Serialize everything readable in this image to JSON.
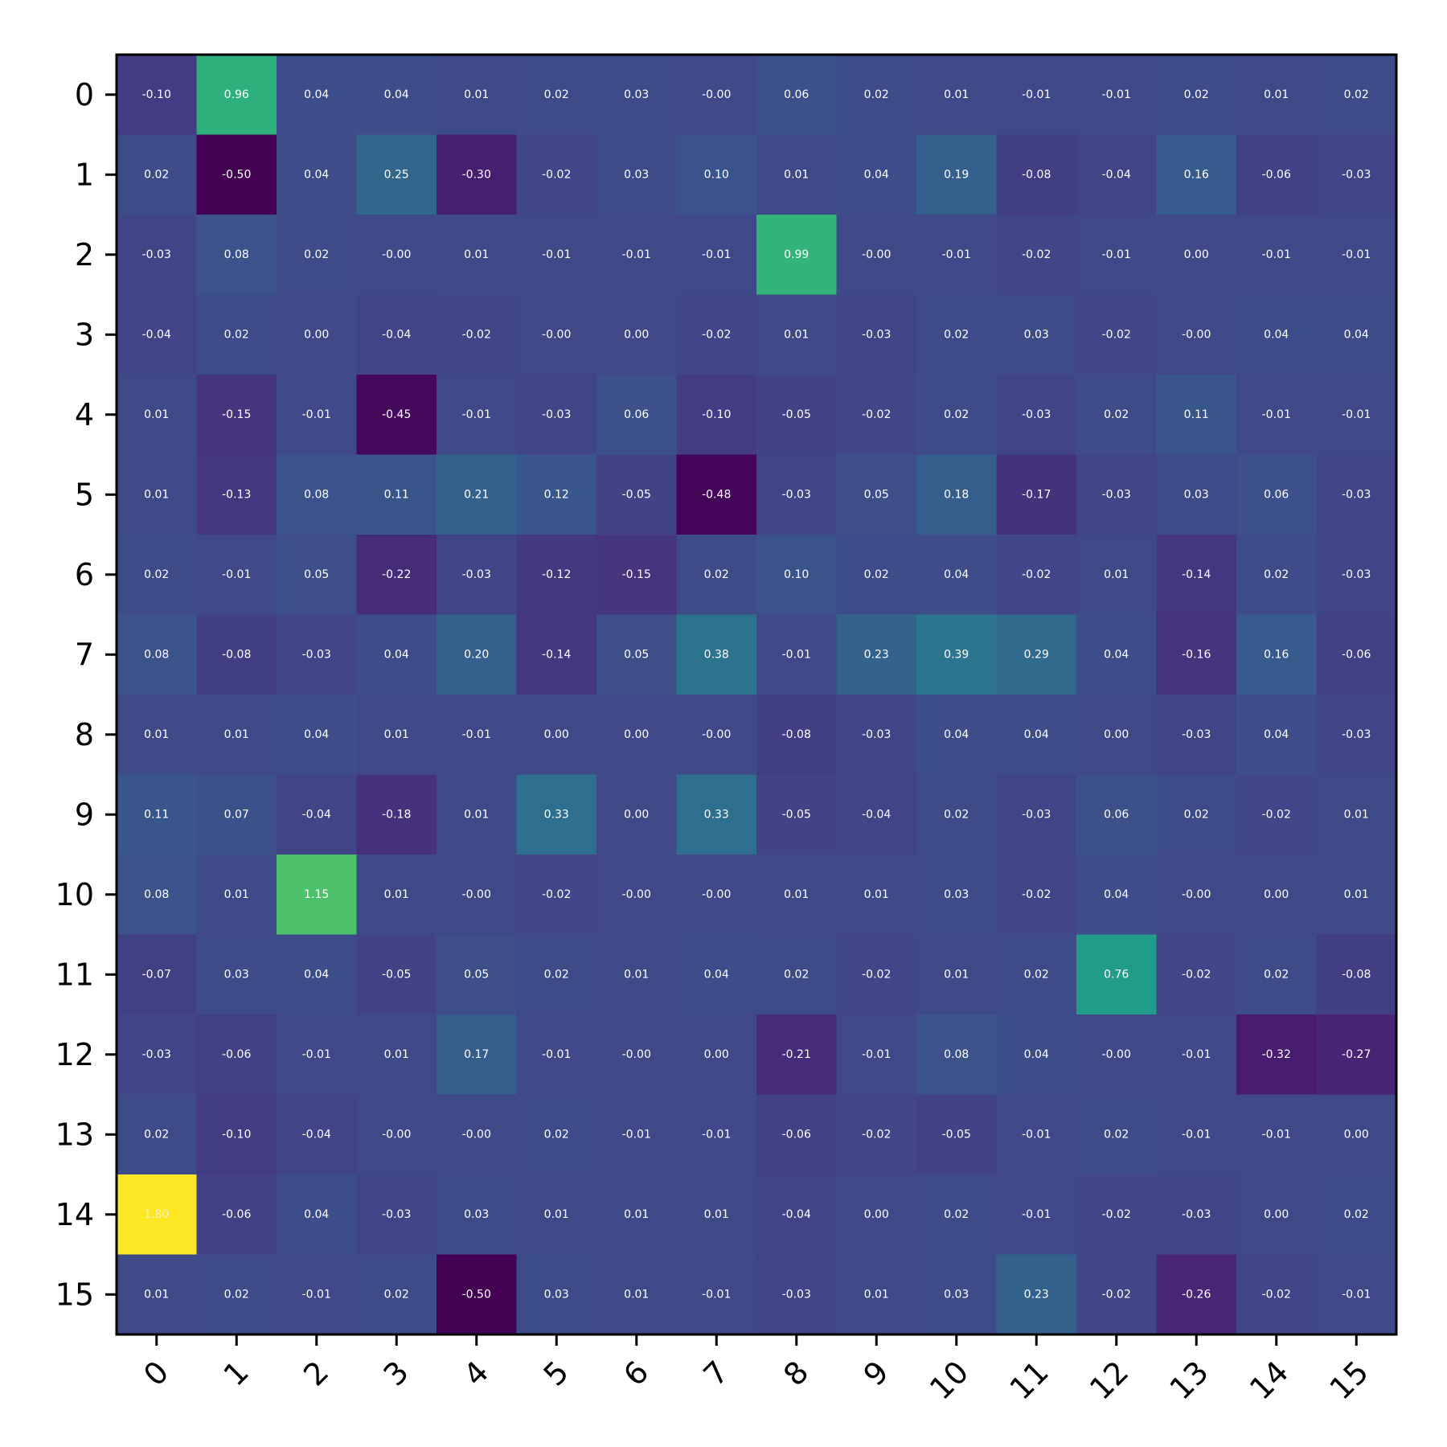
{
  "chart_data": {
    "type": "heatmap",
    "title": "",
    "xlabel": "",
    "ylabel": "",
    "colormap": "viridis",
    "vmin": -0.5,
    "vmax": 1.8,
    "grid": false,
    "x_ticks": [
      "0",
      "1",
      "2",
      "3",
      "4",
      "5",
      "6",
      "7",
      "8",
      "9",
      "10",
      "11",
      "12",
      "13",
      "14",
      "15"
    ],
    "y_ticks": [
      "0",
      "1",
      "2",
      "3",
      "4",
      "5",
      "6",
      "7",
      "8",
      "9",
      "10",
      "11",
      "12",
      "13",
      "14",
      "15"
    ],
    "labels": [
      [
        "-0.10",
        "0.96",
        "0.04",
        "0.04",
        "0.01",
        "0.02",
        "0.03",
        "-0.00",
        "0.06",
        "0.02",
        "0.01",
        "-0.01",
        "-0.01",
        "0.02",
        "0.01",
        "0.02"
      ],
      [
        "0.02",
        "-0.50",
        "0.04",
        "0.25",
        "-0.30",
        "-0.02",
        "0.03",
        "0.10",
        "0.01",
        "0.04",
        "0.19",
        "-0.08",
        "-0.04",
        "0.16",
        "-0.06",
        "-0.03"
      ],
      [
        "-0.03",
        "0.08",
        "0.02",
        "-0.00",
        "0.01",
        "-0.01",
        "-0.01",
        "-0.01",
        "0.99",
        "-0.00",
        "-0.01",
        "-0.02",
        "-0.01",
        "0.00",
        "-0.01",
        "-0.01"
      ],
      [
        "-0.04",
        "0.02",
        "0.00",
        "-0.04",
        "-0.02",
        "-0.00",
        "0.00",
        "-0.02",
        "0.01",
        "-0.03",
        "0.02",
        "0.03",
        "-0.02",
        "-0.00",
        "0.04",
        "0.04"
      ],
      [
        "0.01",
        "-0.15",
        "-0.01",
        "-0.45",
        "-0.01",
        "-0.03",
        "0.06",
        "-0.10",
        "-0.05",
        "-0.02",
        "0.02",
        "-0.03",
        "0.02",
        "0.11",
        "-0.01",
        "-0.01"
      ],
      [
        "0.01",
        "-0.13",
        "0.08",
        "0.11",
        "0.21",
        "0.12",
        "-0.05",
        "-0.48",
        "-0.03",
        "0.05",
        "0.18",
        "-0.17",
        "-0.03",
        "0.03",
        "0.06",
        "-0.03"
      ],
      [
        "0.02",
        "-0.01",
        "0.05",
        "-0.22",
        "-0.03",
        "-0.12",
        "-0.15",
        "0.02",
        "0.10",
        "0.02",
        "0.04",
        "-0.02",
        "0.01",
        "-0.14",
        "0.02",
        "-0.03"
      ],
      [
        "0.08",
        "-0.08",
        "-0.03",
        "0.04",
        "0.20",
        "-0.14",
        "0.05",
        "0.38",
        "-0.01",
        "0.23",
        "0.39",
        "0.29",
        "0.04",
        "-0.16",
        "0.16",
        "-0.06"
      ],
      [
        "0.01",
        "0.01",
        "0.04",
        "0.01",
        "-0.01",
        "0.00",
        "0.00",
        "-0.00",
        "-0.08",
        "-0.03",
        "0.04",
        "0.04",
        "0.00",
        "-0.03",
        "0.04",
        "-0.03"
      ],
      [
        "0.11",
        "0.07",
        "-0.04",
        "-0.18",
        "0.01",
        "0.33",
        "0.00",
        "0.33",
        "-0.05",
        "-0.04",
        "0.02",
        "-0.03",
        "0.06",
        "0.02",
        "-0.02",
        "0.01"
      ],
      [
        "0.08",
        "0.01",
        "1.15",
        "0.01",
        "-0.00",
        "-0.02",
        "-0.00",
        "-0.00",
        "0.01",
        "0.01",
        "0.03",
        "-0.02",
        "0.04",
        "-0.00",
        "0.00",
        "0.01"
      ],
      [
        "-0.07",
        "0.03",
        "0.04",
        "-0.05",
        "0.05",
        "0.02",
        "0.01",
        "0.04",
        "0.02",
        "-0.02",
        "0.01",
        "0.02",
        "0.76",
        "-0.02",
        "0.02",
        "-0.08"
      ],
      [
        "-0.03",
        "-0.06",
        "-0.01",
        "0.01",
        "0.17",
        "-0.01",
        "-0.00",
        "0.00",
        "-0.21",
        "-0.01",
        "0.08",
        "0.04",
        "-0.00",
        "-0.01",
        "-0.32",
        "-0.27"
      ],
      [
        "0.02",
        "-0.10",
        "-0.04",
        "-0.00",
        "-0.00",
        "0.02",
        "-0.01",
        "-0.01",
        "-0.06",
        "-0.02",
        "-0.05",
        "-0.01",
        "0.02",
        "-0.01",
        "-0.01",
        "0.00"
      ],
      [
        "1.80",
        "-0.06",
        "0.04",
        "-0.03",
        "0.03",
        "0.01",
        "0.01",
        "0.01",
        "-0.04",
        "0.00",
        "0.02",
        "-0.01",
        "-0.02",
        "-0.03",
        "0.00",
        "0.02"
      ],
      [
        "0.01",
        "0.02",
        "-0.01",
        "0.02",
        "-0.50",
        "0.03",
        "0.01",
        "-0.01",
        "-0.03",
        "0.01",
        "0.03",
        "0.23",
        "-0.02",
        "-0.26",
        "-0.02",
        "-0.01"
      ]
    ]
  }
}
